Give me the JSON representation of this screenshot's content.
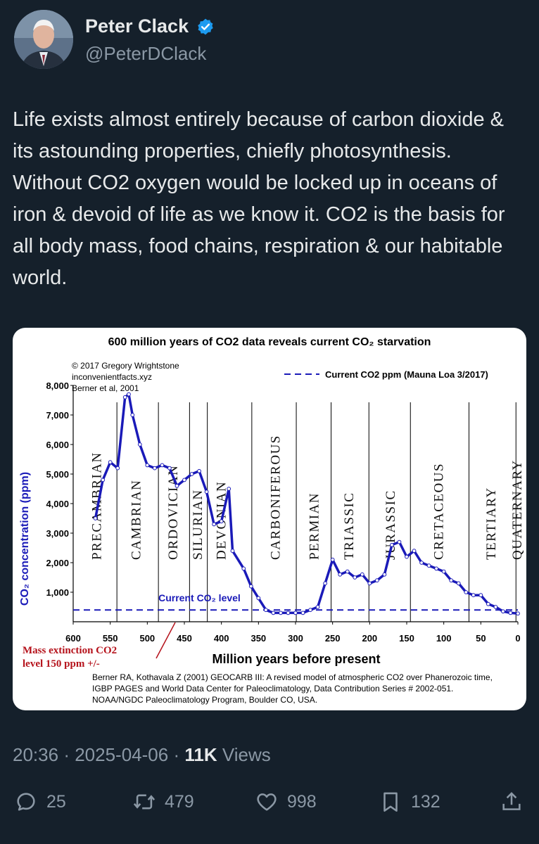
{
  "author": {
    "display_name": "Peter Clack",
    "handle": "@PeterDClack",
    "verified": true
  },
  "tweet": {
    "text": "Life exists almost entirely because of carbon dioxide & its astounding properties, chiefly photosynthesis. Without CO2 oxygen would be locked up in oceans of iron & devoid of life as we know it. CO2 is the basis for all body mass, food chains, respiration & our habitable world.",
    "time": "20:36",
    "date": "2025-04-06",
    "views_count": "11K",
    "views_label": "Views"
  },
  "actions": {
    "replies": "25",
    "reposts": "479",
    "likes": "998",
    "bookmarks": "132"
  },
  "chart_data": {
    "type": "line",
    "title": "600 million years of CO2 data reveals current CO₂ starvation",
    "credit": [
      "© 2017 Gregory Wrightstone",
      "inconvenientfacts.xyz",
      "Berner et al, 2001"
    ],
    "legend": "Current CO2 ppm (Mauna Loa 3/2017)",
    "legend_position": "top-right",
    "xlabel": "Million years before present",
    "ylabel": "CO₂ concentration (ppm)",
    "x_reversed": true,
    "xlim": [
      600,
      0
    ],
    "ylim": [
      0,
      8000
    ],
    "x_ticks": [
      600,
      550,
      500,
      450,
      400,
      350,
      300,
      250,
      200,
      150,
      100,
      50,
      0
    ],
    "y_ticks": [
      1000,
      2000,
      3000,
      4000,
      5000,
      6000,
      7000,
      8000
    ],
    "y_tick_labels": [
      "1,000",
      "2,000",
      "3,000",
      "4,000",
      "5,000",
      "6,000",
      "7,000",
      "8,000"
    ],
    "series": [
      {
        "values": [
          {
            "x": 570,
            "y": 3500
          },
          {
            "x": 560,
            "y": 4800
          },
          {
            "x": 550,
            "y": 5400
          },
          {
            "x": 540,
            "y": 5200
          },
          {
            "x": 530,
            "y": 7600
          },
          {
            "x": 525,
            "y": 7700
          },
          {
            "x": 520,
            "y": 7000
          },
          {
            "x": 510,
            "y": 6000
          },
          {
            "x": 500,
            "y": 5300
          },
          {
            "x": 490,
            "y": 5200
          },
          {
            "x": 480,
            "y": 5300
          },
          {
            "x": 470,
            "y": 5200
          },
          {
            "x": 460,
            "y": 4600
          },
          {
            "x": 450,
            "y": 4800
          },
          {
            "x": 440,
            "y": 5000
          },
          {
            "x": 430,
            "y": 5100
          },
          {
            "x": 420,
            "y": 4400
          },
          {
            "x": 410,
            "y": 3300
          },
          {
            "x": 400,
            "y": 3400
          },
          {
            "x": 390,
            "y": 4500
          },
          {
            "x": 385,
            "y": 2400
          },
          {
            "x": 370,
            "y": 1800
          },
          {
            "x": 360,
            "y": 1200
          },
          {
            "x": 350,
            "y": 800
          },
          {
            "x": 340,
            "y": 400
          },
          {
            "x": 330,
            "y": 300
          },
          {
            "x": 320,
            "y": 300
          },
          {
            "x": 310,
            "y": 300
          },
          {
            "x": 300,
            "y": 300
          },
          {
            "x": 290,
            "y": 300
          },
          {
            "x": 280,
            "y": 400
          },
          {
            "x": 270,
            "y": 500
          },
          {
            "x": 260,
            "y": 1300
          },
          {
            "x": 250,
            "y": 2100
          },
          {
            "x": 240,
            "y": 1600
          },
          {
            "x": 230,
            "y": 1700
          },
          {
            "x": 220,
            "y": 1500
          },
          {
            "x": 210,
            "y": 1600
          },
          {
            "x": 200,
            "y": 1300
          },
          {
            "x": 190,
            "y": 1400
          },
          {
            "x": 180,
            "y": 1600
          },
          {
            "x": 170,
            "y": 2600
          },
          {
            "x": 160,
            "y": 2700
          },
          {
            "x": 150,
            "y": 2200
          },
          {
            "x": 140,
            "y": 2400
          },
          {
            "x": 130,
            "y": 2000
          },
          {
            "x": 120,
            "y": 1900
          },
          {
            "x": 110,
            "y": 1800
          },
          {
            "x": 100,
            "y": 1700
          },
          {
            "x": 90,
            "y": 1400
          },
          {
            "x": 80,
            "y": 1300
          },
          {
            "x": 70,
            "y": 1000
          },
          {
            "x": 60,
            "y": 900
          },
          {
            "x": 50,
            "y": 900
          },
          {
            "x": 40,
            "y": 600
          },
          {
            "x": 30,
            "y": 500
          },
          {
            "x": 20,
            "y": 350
          },
          {
            "x": 10,
            "y": 300
          },
          {
            "x": 0,
            "y": 280
          }
        ]
      }
    ],
    "current_level_ppm": 400,
    "current_level_label": "Current CO₂ level",
    "periods": [
      {
        "name": "PRECAMBRIAN",
        "label_x": 568,
        "boundary": 541
      },
      {
        "name": "CAMBRIAN",
        "label_x": 515,
        "boundary": 485
      },
      {
        "name": "ORDOVICIAN",
        "label_x": 465,
        "boundary": 443
      },
      {
        "name": "SILURIAN",
        "label_x": 432,
        "boundary": 419
      },
      {
        "name": "DEVONIAN",
        "label_x": 400,
        "boundary": 359
      },
      {
        "name": "CARBONIFEROUS",
        "label_x": 327,
        "boundary": 299
      },
      {
        "name": "PERMIAN",
        "label_x": 275,
        "boundary": 252
      },
      {
        "name": "TRIASSIC",
        "label_x": 228,
        "boundary": 201
      },
      {
        "name": "JURASSIC",
        "label_x": 172,
        "boundary": 145
      },
      {
        "name": "CRETACEOUS",
        "label_x": 107,
        "boundary": 66
      },
      {
        "name": "TERTIARY",
        "label_x": 36,
        "boundary": 2.6
      },
      {
        "name": "QUATERNARY",
        "label_x": 1,
        "boundary": 0
      }
    ],
    "annotation": [
      "Mass extinction CO2",
      "level 150 ppm +/-"
    ],
    "reference": [
      "Berner RA, Kothavala Z (2001) GEOCARB III: A revised model of atmospheric CO2 over Phanerozoic time,",
      "IGBP PAGES and World Data Center for Paleoclimatology, Data Contribution Series # 2002-051.",
      "NOAA/NGDC Paleoclimatology Program, Boulder CO, USA."
    ],
    "colors": {
      "line": "#1a1ab8",
      "current": "#1a1ab8",
      "annotation": "#b5121b",
      "axis": "#000000"
    }
  }
}
